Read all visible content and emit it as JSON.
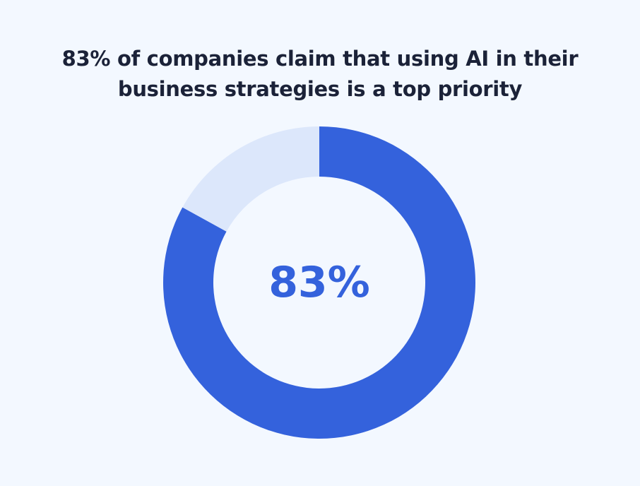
{
  "chart_data": {
    "type": "pie",
    "style": "donut",
    "title_lines": [
      "83% of companies claim that using AI in their",
      "business strategies is a top priority"
    ],
    "center_label": "83%",
    "slices": [
      {
        "value": 83,
        "color": "#3462DC"
      },
      {
        "value": 17,
        "color": "#DCE7FB"
      }
    ],
    "start": "top",
    "direction": "clockwise",
    "background": "#F3F8FF"
  }
}
